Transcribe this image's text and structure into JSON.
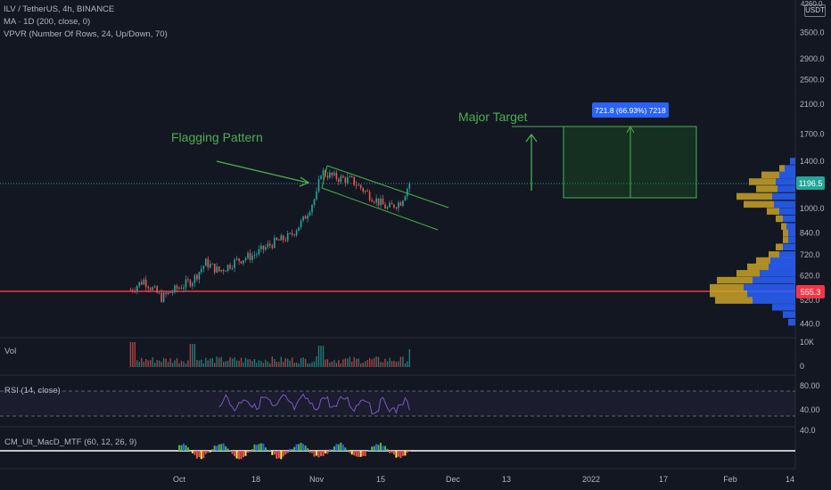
{
  "header": {
    "line1": "ILV / TetherUS, 4h, BINANCE",
    "line2": "MA · 1D (200, close, 0)",
    "line3": "VPVR (Number Of Rows, 24, Up/Down, 70)",
    "currency": "USDT",
    "top_price_label": "4260.0"
  },
  "annotations": {
    "flag": "Flagging Pattern",
    "target": "Major Target",
    "measure": "721.8 (66.93%) 7218"
  },
  "price_badges": {
    "current": "1196.5",
    "support": "555.3"
  },
  "colors": {
    "background": "#131722",
    "up": "#26a69a",
    "down": "#ef5350",
    "annotation": "#4caf50",
    "support_line": "#f23645",
    "measure_badge": "#2962ff",
    "vpvr_up": "#2962ff",
    "vpvr_down": "#c9a227"
  },
  "chart_data": [
    {
      "type": "candlestick",
      "title": "ILV / TetherUS, 4h, BINANCE",
      "y_scale": "log",
      "yticks": [
        "3500.0",
        "2900.0",
        "2500.0",
        "2100.0",
        "1700.0",
        "1400.0",
        "1000.0",
        "840.0",
        "720.0",
        "620.0",
        "520.0",
        "440.0"
      ],
      "ytick_values": [
        3500,
        2900,
        2500,
        2100,
        1700,
        1400,
        1000,
        840,
        720,
        620,
        520,
        440
      ],
      "ylim": [
        400,
        4300
      ],
      "xticks": [
        "Oct",
        "18",
        "Nov",
        "15",
        "Dec",
        "13",
        "2022",
        "17",
        "Feb",
        "14"
      ],
      "price_path": [
        {
          "x": "Sep 20",
          "y": 560
        },
        {
          "x": "Sep 23",
          "y": 600
        },
        {
          "x": "Sep 27",
          "y": 530
        },
        {
          "x": "Oct 1",
          "y": 570
        },
        {
          "x": "Oct 4",
          "y": 600
        },
        {
          "x": "Oct 7",
          "y": 680
        },
        {
          "x": "Oct 10",
          "y": 640
        },
        {
          "x": "Oct 14",
          "y": 690
        },
        {
          "x": "Oct 18",
          "y": 720
        },
        {
          "x": "Oct 22",
          "y": 780
        },
        {
          "x": "Oct 26",
          "y": 820
        },
        {
          "x": "Oct 29",
          "y": 920
        },
        {
          "x": "Nov 1",
          "y": 1100
        },
        {
          "x": "Nov 2",
          "y": 1300
        },
        {
          "x": "Nov 5",
          "y": 1250
        },
        {
          "x": "Nov 9",
          "y": 1220
        },
        {
          "x": "Nov 13",
          "y": 1100
        },
        {
          "x": "Nov 17",
          "y": 1000
        },
        {
          "x": "Nov 20",
          "y": 1050
        },
        {
          "x": "Nov 22",
          "y": 1196.5
        }
      ],
      "moving_average": {
        "name": "MA · 1D (200, close, 0)"
      },
      "horizontal_lines": [
        {
          "name": "support",
          "value": 555.3,
          "color": "#f23645"
        }
      ],
      "current_price": 1196.5,
      "target_zone": {
        "from": 1080,
        "to": 1800,
        "change": "721.8 (66.93%) 7218"
      }
    },
    {
      "type": "bar",
      "title": "Vol",
      "yticks": [
        "10K",
        "0"
      ]
    },
    {
      "type": "line",
      "title": "RSI (14, close)",
      "yticks": [
        "80.00",
        "40.00"
      ],
      "bands": [
        70,
        30
      ]
    },
    {
      "type": "line",
      "title": "CM_Ult_MacD_MTF (60, 12, 26, 9)",
      "yticks": [
        "40.0"
      ]
    }
  ]
}
